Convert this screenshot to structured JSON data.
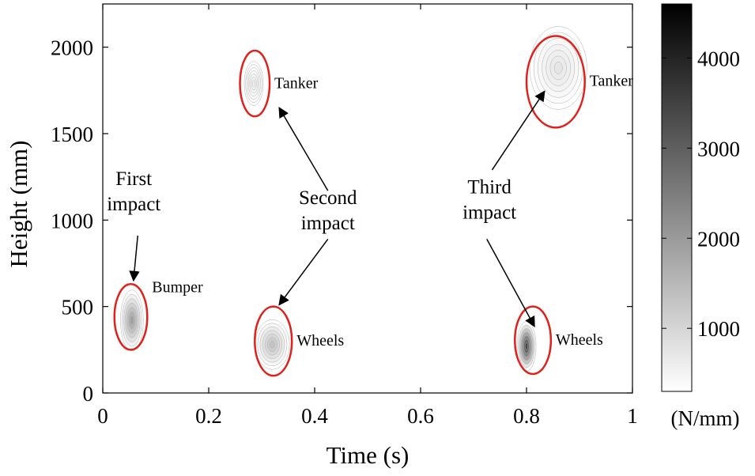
{
  "chart_data": {
    "type": "heatmap",
    "title": "",
    "xlabel": "Time (s)",
    "ylabel": "Height (mm)",
    "xlim": [
      0,
      1
    ],
    "ylim": [
      0,
      2250
    ],
    "xticks": [
      0,
      0.2,
      0.4,
      0.6,
      0.8,
      1
    ],
    "xtick_labels": [
      "0",
      "0.2",
      "0.4",
      "0.6",
      "0.8",
      "1"
    ],
    "yticks": [
      0,
      500,
      1000,
      1500,
      2000
    ],
    "ytick_labels": [
      "0",
      "500",
      "1000",
      "1500",
      "2000"
    ],
    "grid": false,
    "colorbar": {
      "range": [
        300,
        4600
      ],
      "ticks": [
        1000,
        2000,
        3000,
        4000
      ],
      "tick_labels": [
        "1000",
        "2000",
        "3000",
        "4000"
      ],
      "unit": "(N/mm)",
      "colors": [
        "#ffffff",
        "#000000"
      ]
    },
    "force_regions": [
      {
        "label": "Bumper",
        "t": 0.055,
        "h": 420,
        "peak": 2200,
        "spread_t": 0.012,
        "spread_h": 110
      },
      {
        "label": "Tanker",
        "t": 0.285,
        "h": 1790,
        "peak": 600,
        "spread_t": 0.01,
        "spread_h": 80
      },
      {
        "label": "Wheels",
        "t": 0.32,
        "h": 280,
        "peak": 1500,
        "spread_t": 0.018,
        "spread_h": 90
      },
      {
        "label": "Tanker",
        "t": 0.86,
        "h": 1880,
        "peak": 800,
        "spread_t": 0.03,
        "spread_h": 150
      },
      {
        "label": "Wheels",
        "t": 0.8,
        "h": 270,
        "peak": 4000,
        "spread_t": 0.01,
        "spread_h": 90
      }
    ],
    "circled_regions": [
      {
        "label": "Bumper",
        "t": 0.053,
        "h": 440,
        "rt": 0.031,
        "rh": 190
      },
      {
        "label": "Tanker",
        "t": 0.287,
        "h": 1790,
        "rt": 0.028,
        "rh": 190
      },
      {
        "label": "Wheels",
        "t": 0.322,
        "h": 300,
        "rt": 0.035,
        "rh": 200
      },
      {
        "label": "Tanker",
        "t": 0.855,
        "h": 1800,
        "rt": 0.055,
        "rh": 265
      },
      {
        "label": "Wheels",
        "t": 0.812,
        "h": 305,
        "rt": 0.034,
        "rh": 195
      }
    ],
    "annotations": [
      {
        "lines": [
          "First",
          "impact"
        ],
        "arrows": [
          {
            "from": [
              0.066,
              910
            ],
            "to": [
              0.058,
              650
            ]
          }
        ]
      },
      {
        "lines": [
          "Second",
          "impact"
        ],
        "arrows": [
          {
            "from": [
              0.425,
              1170
            ],
            "to": [
              0.333,
              1650
            ]
          },
          {
            "from": [
              0.425,
              890
            ],
            "to": [
              0.333,
              510
            ]
          }
        ]
      },
      {
        "lines": [
          "Third",
          "impact"
        ],
        "arrows": [
          {
            "from": [
              0.735,
              1290
            ],
            "to": [
              0.834,
              1745
            ]
          },
          {
            "from": [
              0.725,
              890
            ],
            "to": [
              0.815,
              385
            ]
          }
        ]
      }
    ],
    "ellipse_color": "#e0201b"
  }
}
